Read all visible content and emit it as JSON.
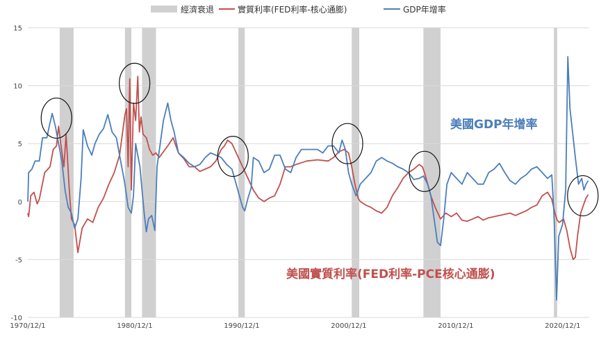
{
  "chart_data": {
    "type": "line",
    "legend": {
      "placement": "top",
      "entries": [
        {
          "label": "經濟衰退",
          "kind": "band",
          "color": "#d0d0d0"
        },
        {
          "label": "實質利率(FED利率-核心通膨)",
          "kind": "line",
          "color": "#c0504d"
        },
        {
          "label": "GDP年增率",
          "kind": "line",
          "color": "#4a7ebb"
        }
      ]
    },
    "x_ticks": [
      "1970/12/1",
      "1980/12/1",
      "1990/12/1",
      "2000/12/1",
      "2010/12/1",
      "2020/12/1"
    ],
    "x_tick_values": [
      1970.92,
      1980.92,
      1990.92,
      2000.92,
      2010.92,
      2020.92
    ],
    "xlim": [
      1970.92,
      2023.4
    ],
    "ylim": [
      -10,
      15
    ],
    "y_ticks": [
      "15",
      "10",
      "5",
      "0",
      "-5",
      "-10"
    ],
    "y_tick_values": [
      15,
      10,
      5,
      0,
      -5,
      -10
    ],
    "grid": "horizontal",
    "recessions": [
      [
        1973.9,
        1975.2
      ],
      [
        1980.0,
        1980.6
      ],
      [
        1981.6,
        1982.9
      ],
      [
        1990.6,
        1991.2
      ],
      [
        2001.2,
        2001.9
      ],
      [
        2007.9,
        2009.5
      ],
      [
        2020.1,
        2020.4
      ]
    ],
    "series": [
      {
        "name": "實質利率(FED利率-核心通膨)",
        "color": "#c0504d",
        "x": [
          1970.92,
          1971.0,
          1971.2,
          1971.5,
          1971.8,
          1972.0,
          1972.5,
          1973.0,
          1973.3,
          1973.6,
          1973.8,
          1974.0,
          1974.3,
          1974.5,
          1974.6,
          1974.8,
          1975.0,
          1975.3,
          1975.6,
          1976.0,
          1976.5,
          1977.0,
          1977.5,
          1978.0,
          1978.5,
          1979.0,
          1979.5,
          1980.0,
          1980.15,
          1980.3,
          1980.45,
          1980.6,
          1980.8,
          1981.0,
          1981.2,
          1981.35,
          1981.5,
          1981.7,
          1982.0,
          1982.3,
          1982.6,
          1982.9,
          1983.2,
          1983.6,
          1984.0,
          1984.5,
          1985.0,
          1985.5,
          1986.0,
          1986.5,
          1987.0,
          1987.5,
          1988.0,
          1988.5,
          1989.0,
          1989.3,
          1989.6,
          1990.0,
          1990.5,
          1991.0,
          1991.5,
          1992.0,
          1992.5,
          1993.0,
          1993.5,
          1994.0,
          1994.5,
          1995.0,
          1995.5,
          1996.0,
          1997.0,
          1998.0,
          1999.0,
          1999.5,
          2000.0,
          2000.5,
          2000.9,
          2001.2,
          2001.5,
          2001.8,
          2002.0,
          2002.5,
          2003.0,
          2003.5,
          2004.0,
          2004.5,
          2005.0,
          2005.5,
          2006.0,
          2006.5,
          2007.0,
          2007.5,
          2007.8,
          2008.0,
          2008.3,
          2008.6,
          2009.0,
          2009.5,
          2010.0,
          2010.5,
          2011.0,
          2011.5,
          2012.0,
          2012.5,
          2013.0,
          2013.5,
          2014.0,
          2015.0,
          2016.0,
          2016.5,
          2017.0,
          2017.5,
          2018.0,
          2018.5,
          2019.0,
          2019.5,
          2019.9,
          2020.2,
          2020.4,
          2020.6,
          2021.0,
          2021.3,
          2021.6,
          2021.9,
          2022.1,
          2022.3,
          2022.6,
          2022.9,
          2023.1,
          2023.3
        ],
        "values": [
          -1.0,
          -1.3,
          0.5,
          0.8,
          -0.2,
          0.2,
          2.5,
          3.0,
          4.5,
          4.8,
          6.5,
          5.0,
          3.0,
          5.8,
          4.2,
          1.0,
          -1.5,
          -2.0,
          -4.4,
          -2.3,
          -1.5,
          -1.8,
          -0.5,
          0.3,
          1.5,
          2.5,
          4.0,
          7.5,
          8.0,
          3.0,
          10.6,
          1.0,
          8.5,
          7.0,
          10.8,
          6.0,
          7.3,
          5.8,
          5.5,
          4.5,
          4.0,
          4.2,
          3.8,
          4.3,
          4.8,
          5.5,
          4.2,
          3.7,
          3.0,
          3.0,
          2.6,
          2.8,
          3.0,
          3.5,
          4.5,
          4.8,
          5.3,
          5.0,
          4.0,
          3.0,
          2.0,
          1.0,
          0.3,
          0.0,
          0.3,
          0.5,
          1.5,
          3.0,
          3.0,
          3.2,
          3.5,
          3.6,
          3.5,
          3.8,
          4.3,
          4.5,
          4.2,
          3.0,
          1.5,
          0.3,
          0.0,
          -0.3,
          -0.5,
          -0.8,
          -1.0,
          -0.5,
          0.5,
          1.2,
          2.0,
          2.5,
          2.8,
          3.2,
          3.0,
          2.5,
          1.5,
          0.5,
          -0.5,
          -1.5,
          -1.0,
          -1.3,
          -1.0,
          -1.6,
          -1.7,
          -1.5,
          -1.3,
          -1.6,
          -1.4,
          -1.2,
          -1.0,
          -1.2,
          -1.0,
          -0.8,
          -0.5,
          -0.3,
          0.5,
          0.8,
          0.2,
          -1.0,
          -1.6,
          -1.8,
          -1.5,
          -2.5,
          -4.0,
          -5.0,
          -4.8,
          -3.0,
          -1.0,
          -0.2,
          0.3,
          0.6
        ]
      },
      {
        "name": "GDP年增率",
        "color": "#4a7ebb",
        "x": [
          1970.92,
          1971.0,
          1971.3,
          1971.6,
          1972.0,
          1972.3,
          1972.7,
          1973.0,
          1973.2,
          1973.5,
          1973.8,
          1974.1,
          1974.4,
          1974.7,
          1975.0,
          1975.3,
          1975.6,
          1975.9,
          1976.1,
          1976.5,
          1976.9,
          1977.2,
          1977.6,
          1978.0,
          1978.4,
          1978.8,
          1979.2,
          1979.6,
          1980.0,
          1980.3,
          1980.6,
          1980.8,
          1981.0,
          1981.2,
          1981.4,
          1981.6,
          1981.8,
          1982.0,
          1982.2,
          1982.5,
          1982.8,
          1983.0,
          1983.3,
          1983.6,
          1984.0,
          1984.3,
          1984.6,
          1985.0,
          1985.5,
          1986.0,
          1986.5,
          1987.0,
          1987.5,
          1988.0,
          1988.5,
          1989.0,
          1989.5,
          1990.0,
          1990.4,
          1990.7,
          1991.0,
          1991.2,
          1991.5,
          1991.8,
          1992.0,
          1992.5,
          1993.0,
          1993.5,
          1994.0,
          1994.5,
          1995.0,
          1995.5,
          1996.0,
          1996.5,
          1997.0,
          1997.5,
          1998.0,
          1998.5,
          1999.0,
          1999.5,
          2000.0,
          2000.3,
          2000.6,
          2000.9,
          2001.2,
          2001.6,
          2002.0,
          2002.5,
          2003.0,
          2003.5,
          2004.0,
          2004.5,
          2005.0,
          2005.5,
          2006.0,
          2006.5,
          2007.0,
          2007.5,
          2007.9,
          2008.3,
          2008.6,
          2008.9,
          2009.2,
          2009.5,
          2009.8,
          2010.1,
          2010.5,
          2011.0,
          2011.5,
          2012.0,
          2012.5,
          2013.0,
          2013.5,
          2014.0,
          2014.5,
          2015.0,
          2015.5,
          2016.0,
          2016.5,
          2017.0,
          2017.5,
          2018.0,
          2018.5,
          2019.0,
          2019.5,
          2019.9,
          2020.1,
          2020.35,
          2020.55,
          2020.9,
          2021.2,
          2021.4,
          2021.6,
          2021.9,
          2022.1,
          2022.4,
          2022.7,
          2022.9,
          2023.1,
          2023.3
        ],
        "values": [
          0.0,
          2.5,
          2.8,
          3.5,
          3.5,
          5.5,
          5.5,
          6.8,
          7.6,
          6.5,
          5.0,
          3.5,
          1.0,
          -0.5,
          -1.0,
          -2.3,
          -1.5,
          2.0,
          6.2,
          4.8,
          4.0,
          5.0,
          5.8,
          6.3,
          7.5,
          6.0,
          5.5,
          3.5,
          1.5,
          -0.5,
          -1.0,
          0.5,
          5.0,
          4.0,
          3.0,
          1.0,
          -1.0,
          -2.6,
          -1.5,
          -1.2,
          -2.5,
          3.0,
          5.0,
          7.0,
          8.5,
          7.0,
          6.0,
          4.2,
          3.8,
          3.3,
          3.0,
          3.2,
          3.8,
          4.2,
          4.0,
          3.8,
          3.2,
          2.8,
          1.5,
          0.5,
          -0.5,
          -0.8,
          0.3,
          1.2,
          3.8,
          3.5,
          2.5,
          2.8,
          4.0,
          4.0,
          2.8,
          2.5,
          3.8,
          4.5,
          4.5,
          4.5,
          4.5,
          4.2,
          4.8,
          4.8,
          4.2,
          5.3,
          4.5,
          2.5,
          1.5,
          0.5,
          1.5,
          2.0,
          2.5,
          3.5,
          3.8,
          3.5,
          3.3,
          3.0,
          2.8,
          2.5,
          1.9,
          2.0,
          2.2,
          1.5,
          0.5,
          -1.5,
          -3.5,
          -3.8,
          -1.5,
          1.5,
          2.5,
          2.0,
          1.5,
          2.5,
          2.0,
          1.5,
          1.5,
          2.5,
          2.8,
          3.3,
          2.5,
          1.8,
          1.5,
          2.0,
          2.3,
          2.8,
          3.0,
          2.5,
          2.0,
          2.3,
          -1.0,
          -8.5,
          -3.0,
          -2.0,
          1.0,
          12.5,
          8.0,
          5.5,
          3.8,
          1.5,
          2.0,
          1.0,
          1.5,
          1.8
        ]
      }
    ],
    "annotations": [
      {
        "text": "美國GDP年增率",
        "color": "#4a7ebb"
      },
      {
        "text": "美國實質利率(FED利率-PCE核心通膨)",
        "color": "#c0504d"
      }
    ],
    "highlight_circles": [
      {
        "x": 1973.6,
        "y": 7.2
      },
      {
        "x": 1980.9,
        "y": 10.2
      },
      {
        "x": 1990.1,
        "y": 3.9
      },
      {
        "x": 2000.8,
        "y": 5.0
      },
      {
        "x": 2008.0,
        "y": 2.6
      },
      {
        "x": 2022.8,
        "y": 0.5
      }
    ]
  }
}
